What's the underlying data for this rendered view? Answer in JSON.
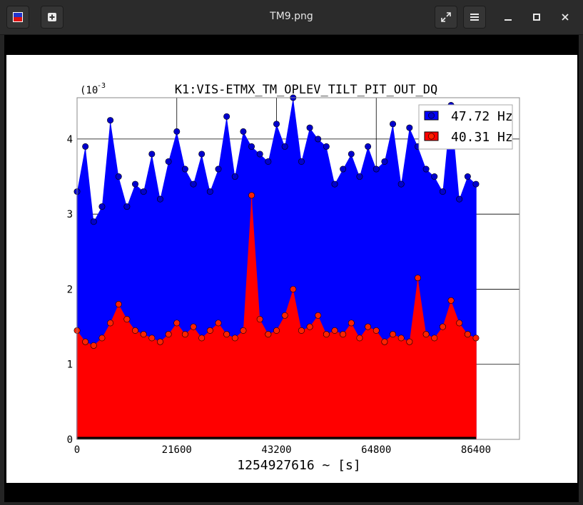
{
  "window": {
    "title": "TM9.png",
    "new_tab_icon": "plus-box-icon",
    "fullscreen_icon": "expand-icon",
    "menu_icon": "hamburger-icon",
    "minimize_icon": "minimize-icon",
    "maximize_icon": "maximize-icon",
    "close_icon": "close-icon"
  },
  "colors": {
    "titlebar": "#2b2b2b",
    "series_blue": "#0000ff",
    "series_red": "#ff0000",
    "marker_blue": "#0000cc",
    "marker_red": "#ff2200"
  },
  "chart_data": {
    "type": "scatter",
    "style": "stem",
    "title": "K1:VIS-ETMX_TM_OPLEV_TILT_PIT_OUT_DQ",
    "xlabel": "1254927616 ~ [s]",
    "ylabel": "",
    "y_multiplier_label": "(10",
    "y_multiplier_exp": "-3",
    "xlim": [
      0,
      86400
    ],
    "ylim": [
      0,
      4.55
    ],
    "xticks": [
      "0",
      "21600",
      "43200",
      "64800",
      "86400"
    ],
    "yticks": [
      "0",
      "1",
      "2",
      "3",
      "4"
    ],
    "grid": true,
    "legend_position": "top-right",
    "series": [
      {
        "name": "47.72 Hz",
        "color": "#0000ff",
        "x": [
          0,
          1800,
          3600,
          5400,
          7200,
          9000,
          10800,
          12600,
          14400,
          16200,
          18000,
          19800,
          21600,
          23400,
          25200,
          27000,
          28800,
          30600,
          32400,
          34200,
          36000,
          37800,
          39600,
          41400,
          43200,
          45000,
          46800,
          48600,
          50400,
          52200,
          54000,
          55800,
          57600,
          59400,
          61200,
          63000,
          64800,
          66600,
          68400,
          70200,
          72000,
          73800,
          75600,
          77400,
          79200,
          81000,
          82800,
          84600,
          86400
        ],
        "y": [
          3.3,
          3.9,
          2.9,
          3.1,
          4.25,
          3.5,
          3.1,
          3.4,
          3.3,
          3.8,
          3.2,
          3.7,
          4.1,
          3.6,
          3.4,
          3.8,
          3.3,
          3.6,
          4.3,
          3.5,
          4.1,
          3.9,
          3.8,
          3.7,
          4.2,
          3.9,
          4.55,
          3.7,
          4.15,
          4.0,
          3.9,
          3.4,
          3.6,
          3.8,
          3.5,
          3.9,
          3.6,
          3.7,
          4.2,
          3.4,
          4.15,
          3.9,
          3.6,
          3.5,
          3.3,
          4.45,
          3.2,
          3.5,
          3.4
        ]
      },
      {
        "name": "40.31 Hz",
        "color": "#ff0000",
        "x": [
          0,
          1800,
          3600,
          5400,
          7200,
          9000,
          10800,
          12600,
          14400,
          16200,
          18000,
          19800,
          21600,
          23400,
          25200,
          27000,
          28800,
          30600,
          32400,
          34200,
          36000,
          37800,
          39600,
          41400,
          43200,
          45000,
          46800,
          48600,
          50400,
          52200,
          54000,
          55800,
          57600,
          59400,
          61200,
          63000,
          64800,
          66600,
          68400,
          70200,
          72000,
          73800,
          75600,
          77400,
          79200,
          81000,
          82800,
          84600,
          86400
        ],
        "y": [
          1.45,
          1.3,
          1.25,
          1.35,
          1.55,
          1.8,
          1.6,
          1.45,
          1.4,
          1.35,
          1.3,
          1.4,
          1.55,
          1.4,
          1.5,
          1.35,
          1.45,
          1.55,
          1.4,
          1.35,
          1.45,
          3.25,
          1.6,
          1.4,
          1.45,
          1.65,
          2.0,
          1.45,
          1.5,
          1.65,
          1.4,
          1.45,
          1.4,
          1.55,
          1.35,
          1.5,
          1.45,
          1.3,
          1.4,
          1.35,
          1.3,
          2.15,
          1.4,
          1.35,
          1.5,
          1.85,
          1.55,
          1.4,
          1.35
        ]
      }
    ]
  }
}
